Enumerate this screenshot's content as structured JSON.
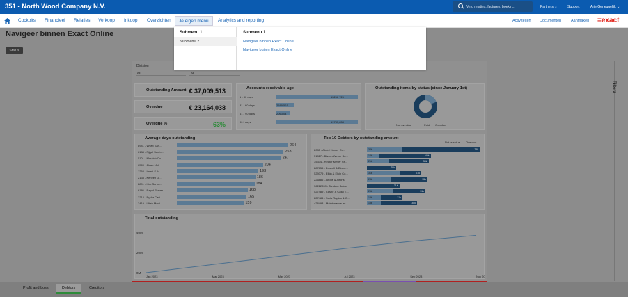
{
  "topbar": {
    "company": "351 - North Wood Company N.V.",
    "search_placeholder": "Vind relaties, facturen, boekin...",
    "partners": "Partners ⌄",
    "support": "Support",
    "user": "Arie Geneugelijk ⌄"
  },
  "menu": {
    "items": [
      "Cockpits",
      "Financieel",
      "Relaties",
      "Verkoop",
      "Inkoop",
      "Overzichten",
      "Je eigen menu",
      "Analytics and reporting"
    ],
    "right": [
      "Activiteiten",
      "Documenten",
      "Aanmaken"
    ],
    "logo": "=exact"
  },
  "dropdown": {
    "left": [
      "Submenu 1",
      "Submenu 2"
    ],
    "right_title": "Submenu 1",
    "links": [
      "Navigeer binnen Exact Online",
      "Navigeer buiten Exact Online"
    ]
  },
  "page": {
    "title": "Navigeer binnen Exact Online",
    "status_button": "Status"
  },
  "filters": {
    "label": "Division",
    "values": [
      "All",
      "All"
    ],
    "panel_label": "Filters"
  },
  "kpis": [
    {
      "label": "Outstanding Amount",
      "value": "€ 37,009,513"
    },
    {
      "label": "Overdue",
      "value": "€ 23,164,038"
    },
    {
      "label": "Overdue %",
      "value": "63%"
    }
  ],
  "receivable_age": {
    "title": "Accounts receivable age",
    "rows": [
      {
        "label": "1 - 30 days",
        "value": "13266 726"
      },
      {
        "label": "31 - 60 days",
        "value": "2589,561"
      },
      {
        "label": "61 - 90 days",
        "value": "2063,04"
      },
      {
        "label": "90+ days",
        "value": "19733,858"
      }
    ]
  },
  "status_chart": {
    "title": "Outstanding items by status (since January 1st)",
    "legend": [
      "Not overdue",
      "Paid",
      "Overdue"
    ]
  },
  "avg_days": {
    "title": "Average days outstanding",
    "rows": [
      {
        "label": "8941 - Wyatt Kan...",
        "value": "264"
      },
      {
        "label": "6188 - Fijgel Sunfo...",
        "value": "253"
      },
      {
        "label": "5101 - Maraich Ov...",
        "value": "247"
      },
      {
        "label": "8584 - Alden Mull...",
        "value": "204"
      },
      {
        "label": "1268 - Imani S. H...",
        "value": "193"
      },
      {
        "label": "2133 - Kerleen D...",
        "value": "186"
      },
      {
        "label": "2891 - Kirk Sunoc...",
        "value": "184"
      },
      {
        "label": "6186 - Rapid Flower",
        "value": "168"
      },
      {
        "label": "2214 - Ryder Cart...",
        "value": "165"
      },
      {
        "label": "2419 - Ulfah Mont...",
        "value": "159"
      }
    ]
  },
  "top_debtors": {
    "title": "Top 10 Debtors by outstanding amount",
    "legend": [
      "Not overdue",
      "Overdue"
    ],
    "rows": [
      {
        "label": "2085 - Abdul Hunter Co...",
        "a": "34k",
        "b": "74k"
      },
      {
        "label": "51817 - Bisson Weber Bo...",
        "a": "12k",
        "b": "49k"
      },
      {
        "label": "35334 - Hector Meyer Se...",
        "a": "21k",
        "b": "38k"
      },
      {
        "label": "287855 - Driscoll & Direct...",
        "a": "",
        "b": "28k"
      },
      {
        "label": "529379 - Elkin & Elkin Co...",
        "a": "31k",
        "b": "21k"
      },
      {
        "label": "226886 - Alfons & Alfons",
        "a": "23k",
        "b": "35k"
      },
      {
        "label": "36222839 - Tandem Sales",
        "a": "",
        "b": "31k"
      },
      {
        "label": "527489 - Cashe & Cash E...",
        "a": "25k",
        "b": "31k"
      },
      {
        "label": "227484 - Seria Rapids & C...",
        "a": "13k",
        "b": "21k"
      },
      {
        "label": "428493 - Maintenance an...",
        "a": "13k",
        "b": "35k"
      }
    ]
  },
  "chart_data": {
    "type": "line",
    "title": "Total outstanding",
    "x": [
      "Jan 2023",
      "Mar 2023",
      "May 2023",
      "Jul 2023",
      "Sep 2023",
      "Nov 2023"
    ],
    "y_ticks": [
      "0M",
      "20M",
      "40M"
    ],
    "values": [
      0,
      8,
      16,
      24,
      31,
      37
    ],
    "ylim": [
      0,
      40
    ]
  },
  "tabs": [
    "Profit and Loss",
    "Debtors",
    "Creditors"
  ],
  "colors": {
    "brand": "#0b5bb0",
    "accent": "#e1261c"
  }
}
